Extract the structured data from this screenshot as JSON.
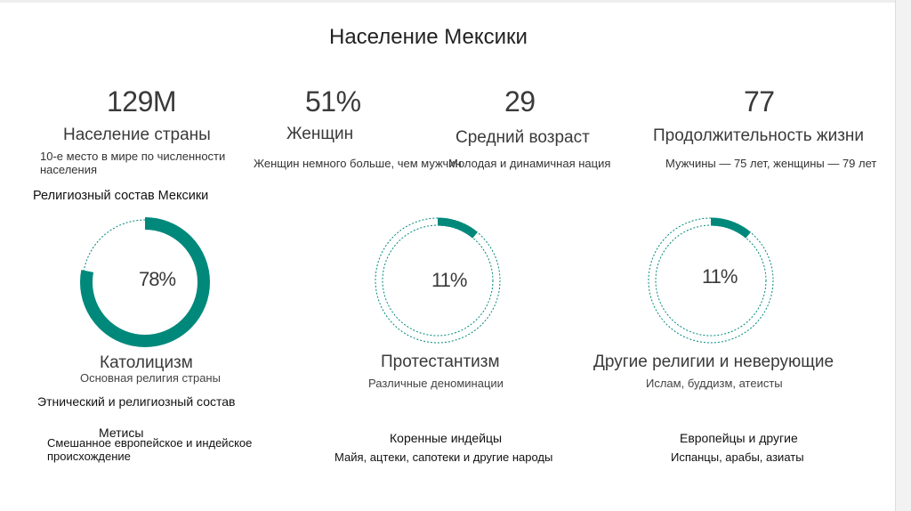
{
  "title": "Население Мексики",
  "stats": [
    {
      "value": "129M",
      "label": "Население страны",
      "note": "10-е место в мире по численности населения"
    },
    {
      "value": "51%",
      "label": "Женщин",
      "note": "Женщин немного больше, чем мужчин"
    },
    {
      "value": "29",
      "label": "Средний возраст",
      "note": "Молодая и динамичная нация"
    },
    {
      "value": "77",
      "label": "Продолжительность жизни",
      "note": "Мужчины — 75 лет, женщины — 79 лет"
    }
  ],
  "religion_heading": "Религиозный состав Мексики",
  "religions": [
    {
      "pct_label": "78%",
      "value": 78,
      "name": "Католицизм",
      "note": "Основная религия страны"
    },
    {
      "pct_label": "11%",
      "value": 11,
      "name": "Протестантизм",
      "note": "Различные деноминации"
    },
    {
      "pct_label": "11%",
      "value": 11,
      "name": "Другие религии и неверующие",
      "note": "Ислам, буддизм, атеисты"
    }
  ],
  "ethnic_heading": "Этнический и религиозный состав",
  "ethnic": [
    {
      "name": "Метисы",
      "note": "Смешанное европейское и индейское происхождение"
    },
    {
      "name": "Коренные индейцы",
      "note": "Майя, ацтеки, сапотеки и другие народы"
    },
    {
      "name": "Европейцы и другие",
      "note": "Испанцы, арабы, азиаты"
    }
  ],
  "colors": {
    "accent": "#00897b",
    "text": "#333333"
  }
}
